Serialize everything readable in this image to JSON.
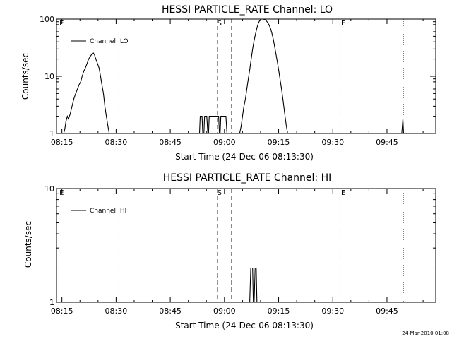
{
  "footer_timestamp": "24-Mar-2010 01:08",
  "colors": {
    "line": "#000000",
    "background": "#ffffff"
  },
  "chart_data": [
    {
      "type": "line",
      "title": "HESSI PARTICLE_RATE Channel: LO",
      "xlabel": "Start Time (24-Dec-06 08:13:30)",
      "ylabel": "Counts/sec",
      "yscale": "log",
      "xlim_minutes": [
        0,
        105
      ],
      "ylim": [
        1,
        100
      ],
      "x_tick_labels": [
        "08:15",
        "08:30",
        "08:45",
        "09:00",
        "09:15",
        "09:30",
        "09:45"
      ],
      "x_tick_minutes": [
        1.5,
        16.5,
        31.5,
        46.5,
        61.5,
        76.5,
        91.5
      ],
      "y_tick_labels": [
        "1",
        "10",
        "100"
      ],
      "y_tick_values": [
        1,
        10,
        100
      ],
      "legend": {
        "label": "Channel: LO",
        "placement": "top-left"
      },
      "flags": [
        {
          "text": "E",
          "at_minute": 0.8
        },
        {
          "text": "S",
          "at_minute": 44.5
        },
        {
          "text": "E",
          "at_minute": 78.8
        }
      ],
      "markers": [
        {
          "style": "dotted",
          "at_minute": 17.3
        },
        {
          "style": "dashed",
          "at_minute": 44.6
        },
        {
          "style": "dashed",
          "at_minute": 48.5
        },
        {
          "style": "dotted",
          "at_minute": 78.5
        },
        {
          "style": "dotted",
          "at_minute": 96.0
        }
      ],
      "series": [
        {
          "values_min_counts": [
            [
              2.0,
              1
            ],
            [
              2.3,
              1.2
            ],
            [
              2.6,
              1.6
            ],
            [
              3.0,
              2.0
            ],
            [
              3.3,
              1.8
            ],
            [
              3.8,
              2.2
            ],
            [
              4.3,
              3.0
            ],
            [
              4.8,
              4.0
            ],
            [
              5.3,
              5.0
            ],
            [
              5.8,
              6.0
            ],
            [
              6.2,
              7.0
            ],
            [
              6.7,
              8.0
            ],
            [
              7.1,
              10.0
            ],
            [
              7.6,
              12.5
            ],
            [
              8.0,
              14.0
            ],
            [
              8.5,
              17.0
            ],
            [
              8.9,
              20.0
            ],
            [
              9.3,
              22.0
            ],
            [
              9.8,
              24.5
            ],
            [
              10.1,
              26.0
            ],
            [
              10.5,
              24.0
            ],
            [
              10.9,
              20.0
            ],
            [
              11.3,
              17.0
            ],
            [
              11.8,
              14.0
            ],
            [
              12.2,
              10.0
            ],
            [
              12.6,
              7.0
            ],
            [
              13.0,
              5.0
            ],
            [
              13.4,
              3.0
            ],
            [
              13.8,
              2.0
            ],
            [
              14.2,
              1.4
            ],
            [
              14.6,
              1
            ]
          ]
        },
        {
          "values_min_counts": [
            [
              39.6,
              1
            ],
            [
              39.8,
              2.0
            ],
            [
              40.3,
              2.0
            ],
            [
              40.5,
              1
            ],
            [
              40.8,
              1
            ],
            [
              41.0,
              2.0
            ],
            [
              41.6,
              2.0
            ],
            [
              41.9,
              1
            ],
            [
              42.1,
              1
            ],
            [
              42.3,
              2.0
            ],
            [
              44.9,
              2.0
            ],
            [
              45.1,
              1
            ],
            [
              45.3,
              1
            ],
            [
              45.5,
              2.0
            ],
            [
              46.9,
              2.0
            ],
            [
              47.2,
              1
            ]
          ]
        },
        {
          "values_min_counts": [
            [
              50.7,
              1
            ],
            [
              51.1,
              1.3
            ],
            [
              51.5,
              2.0
            ],
            [
              51.9,
              3.0
            ],
            [
              52.3,
              4.0
            ],
            [
              52.7,
              6.0
            ],
            [
              53.1,
              9.0
            ],
            [
              53.5,
              13.0
            ],
            [
              53.9,
              20.0
            ],
            [
              54.3,
              30.0
            ],
            [
              54.7,
              42.0
            ],
            [
              55.1,
              55.0
            ],
            [
              55.5,
              70.0
            ],
            [
              55.9,
              85.0
            ],
            [
              56.3,
              95.0
            ],
            [
              56.7,
              100.0
            ],
            [
              57.3,
              100.0
            ],
            [
              57.6,
              98.0
            ],
            [
              58.0,
              95.0
            ],
            [
              58.4,
              88.0
            ],
            [
              58.8,
              80.0
            ],
            [
              59.2,
              70.0
            ],
            [
              59.6,
              58.0
            ],
            [
              60.0,
              45.0
            ],
            [
              60.4,
              33.0
            ],
            [
              60.8,
              24.0
            ],
            [
              61.2,
              17.0
            ],
            [
              61.6,
              12.0
            ],
            [
              62.0,
              8.0
            ],
            [
              62.4,
              5.5
            ],
            [
              62.8,
              3.5
            ],
            [
              63.2,
              2.2
            ],
            [
              63.6,
              1.4
            ],
            [
              64.0,
              1
            ]
          ]
        },
        {
          "values_min_counts": [
            [
              95.6,
              1
            ],
            [
              95.9,
              1.8
            ],
            [
              96.1,
              1
            ]
          ]
        }
      ]
    },
    {
      "type": "line",
      "title": "HESSI PARTICLE_RATE Channel: HI",
      "xlabel": "Start Time (24-Dec-06 08:13:30)",
      "ylabel": "Counts/sec",
      "yscale": "log",
      "xlim_minutes": [
        0,
        105
      ],
      "ylim": [
        1,
        10
      ],
      "x_tick_labels": [
        "08:15",
        "08:30",
        "08:45",
        "09:00",
        "09:15",
        "09:30",
        "09:45"
      ],
      "x_tick_minutes": [
        1.5,
        16.5,
        31.5,
        46.5,
        61.5,
        76.5,
        91.5
      ],
      "y_tick_labels": [
        "1",
        "10"
      ],
      "y_tick_values": [
        1,
        10
      ],
      "legend": {
        "label": "Channel: HI",
        "placement": "top-left"
      },
      "flags": [
        {
          "text": "E",
          "at_minute": 0.8
        },
        {
          "text": "S",
          "at_minute": 44.5
        },
        {
          "text": "E",
          "at_minute": 78.8
        }
      ],
      "markers": [
        {
          "style": "dotted",
          "at_minute": 17.3
        },
        {
          "style": "dashed",
          "at_minute": 44.6
        },
        {
          "style": "dashed",
          "at_minute": 48.5
        },
        {
          "style": "dotted",
          "at_minute": 78.5
        },
        {
          "style": "dotted",
          "at_minute": 96.0
        }
      ],
      "series": [
        {
          "values_min_counts": [
            [
              53.5,
              1
            ],
            [
              53.8,
              2.0
            ],
            [
              54.3,
              2.0
            ],
            [
              54.5,
              1
            ],
            [
              54.7,
              1
            ],
            [
              55.0,
              2.0
            ],
            [
              55.3,
              2.0
            ],
            [
              55.5,
              1
            ]
          ]
        }
      ]
    }
  ]
}
